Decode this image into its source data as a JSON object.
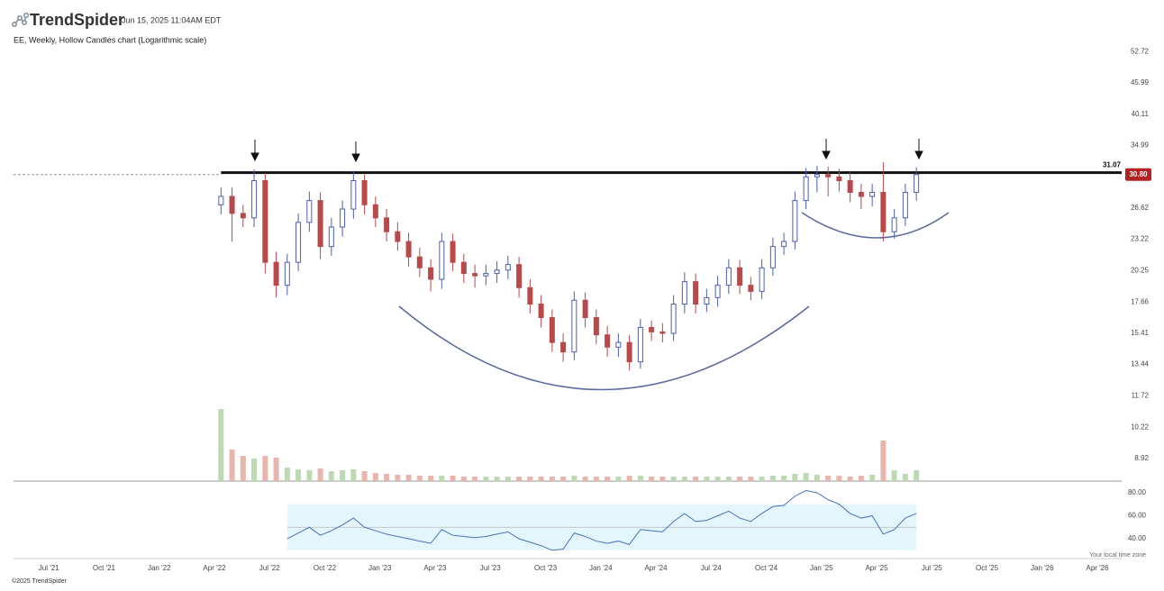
{
  "header": {
    "brand": "TrendSpider",
    "timestamp": "Jun 15, 2025 11:04AM EDT"
  },
  "footer": {
    "copyright": "©2025 TrendSpider",
    "timezone_note": "Your local time zone"
  },
  "chart_data": {
    "type": "candlestick",
    "title": "EE, Weekly, Hollow Candles chart (Logarithmic scale)",
    "log_scale": true,
    "up_color": "#4a5fb0",
    "down_color": "#b8484a",
    "x": [
      2022.28,
      2022.33,
      2022.38,
      2022.43,
      2022.48,
      2022.53,
      2022.58,
      2022.63,
      2022.68,
      2022.73,
      2022.78,
      2022.83,
      2022.88,
      2022.93,
      2022.98,
      2023.03,
      2023.08,
      2023.13,
      2023.18,
      2023.23,
      2023.28,
      2023.33,
      2023.38,
      2023.43,
      2023.48,
      2023.53,
      2023.58,
      2023.63,
      2023.68,
      2023.73,
      2023.78,
      2023.83,
      2023.88,
      2023.93,
      2023.98,
      2024.03,
      2024.08,
      2024.13,
      2024.18,
      2024.23,
      2024.28,
      2024.33,
      2024.38,
      2024.43,
      2024.48,
      2024.53,
      2024.58,
      2024.63,
      2024.68,
      2024.73,
      2024.78,
      2024.83,
      2024.88,
      2024.93,
      2024.98,
      2025.03,
      2025.08,
      2025.13,
      2025.18,
      2025.23,
      2025.28,
      2025.33,
      2025.38,
      2025.43
    ],
    "open": [
      27,
      28,
      26,
      25.5,
      30,
      21,
      19,
      21,
      25,
      27.5,
      22.5,
      24.5,
      26.5,
      30,
      27,
      25.5,
      24,
      23,
      21.5,
      20.5,
      19.5,
      23,
      21,
      20,
      19.8,
      20,
      20.3,
      20.8,
      18.8,
      17.5,
      16.5,
      14.8,
      14.2,
      17.8,
      16.5,
      15.3,
      14.5,
      14.8,
      13.6,
      15.8,
      15.5,
      15.4,
      17.5,
      19.3,
      17.5,
      18,
      19,
      20.5,
      19,
      18.5,
      20.5,
      22.5,
      23,
      27.5,
      30.5,
      30.8,
      30.5,
      30,
      28.5,
      28,
      28.5,
      24,
      25.5,
      28.5
    ],
    "high": [
      29.1,
      29.1,
      27,
      31.5,
      31,
      22,
      21.8,
      26,
      28.6,
      28.5,
      25.5,
      27.5,
      31.3,
      30.8,
      28,
      26.5,
      25,
      23.9,
      22.4,
      21.3,
      23.9,
      23.8,
      21.8,
      20.8,
      20.8,
      21.1,
      21.6,
      21.5,
      19.5,
      18.2,
      17.1,
      15.4,
      18.5,
      18.4,
      17.1,
      15.9,
      15.4,
      15.3,
      16.4,
      16.3,
      16.1,
      18.2,
      20.1,
      20,
      18.7,
      19.8,
      21.3,
      21.2,
      19.7,
      21.3,
      23.4,
      23.9,
      28.6,
      31.7,
      32,
      31.9,
      31.6,
      31.1,
      29.6,
      29.6,
      32.5,
      26.5,
      29.6,
      31.8
    ],
    "low": [
      25.9,
      23,
      24.5,
      24.5,
      20,
      18,
      18.2,
      20.2,
      24,
      21.3,
      21.6,
      23.5,
      25.4,
      25.9,
      24.5,
      23,
      22.1,
      20.6,
      19.7,
      18.5,
      18.7,
      20.2,
      19.2,
      18.8,
      19,
      19.2,
      19.5,
      18,
      16.8,
      15.8,
      14.2,
      13.6,
      13.7,
      15.8,
      14.7,
      13.9,
      13.9,
      13.1,
      13.2,
      14.9,
      14.8,
      14.9,
      16.8,
      16.8,
      16.9,
      17.3,
      18.3,
      18.3,
      17.8,
      17.9,
      19.8,
      21.7,
      22.2,
      26.5,
      28.5,
      28,
      28.6,
      27.3,
      26.5,
      26.8,
      23,
      23.3,
      24.6,
      27.5
    ],
    "close": [
      28,
      26,
      25.5,
      30,
      21,
      19,
      21,
      25,
      27.5,
      22.5,
      24.5,
      26.5,
      30,
      27,
      25.5,
      24,
      23,
      21.5,
      20.5,
      19.5,
      23,
      21,
      20,
      19.8,
      20,
      20.3,
      20.8,
      18.8,
      17.5,
      16.5,
      14.8,
      14.2,
      17.8,
      16.5,
      15.3,
      14.5,
      14.8,
      13.6,
      15.8,
      15.5,
      15.4,
      17.5,
      19.3,
      17.5,
      18,
      19,
      20.5,
      19,
      18.5,
      20.5,
      22.5,
      23,
      27.5,
      30.5,
      30.8,
      30.5,
      30,
      28.5,
      28,
      28.5,
      24,
      25.5,
      28.5,
      30.8
    ],
    "volume": [
      8,
      3.5,
      2.8,
      2.5,
      2.8,
      2.6,
      1.5,
      1.3,
      1.2,
      1.4,
      1.1,
      1.2,
      1.3,
      1.1,
      0.9,
      0.8,
      0.7,
      0.7,
      0.6,
      0.6,
      0.6,
      0.6,
      0.5,
      0.5,
      0.5,
      0.5,
      0.5,
      0.5,
      0.5,
      0.5,
      0.5,
      0.5,
      0.6,
      0.5,
      0.5,
      0.5,
      0.5,
      0.6,
      0.6,
      0.5,
      0.5,
      0.5,
      0.5,
      0.5,
      0.5,
      0.5,
      0.5,
      0.5,
      0.5,
      0.5,
      0.6,
      0.6,
      0.8,
      0.9,
      0.7,
      0.6,
      0.6,
      0.5,
      0.6,
      0.7,
      4.5,
      1.2,
      0.8,
      1.2
    ],
    "rsi": [
      null,
      null,
      null,
      null,
      null,
      null,
      40,
      45,
      50,
      43,
      47,
      52,
      58,
      50,
      47,
      44,
      42,
      40,
      38,
      36,
      48,
      43,
      42,
      41,
      42,
      44,
      46,
      40,
      37,
      34,
      30,
      31,
      45,
      42,
      38,
      36,
      38,
      35,
      48,
      47,
      46,
      55,
      62,
      55,
      56,
      60,
      64,
      58,
      55,
      62,
      68,
      69,
      77,
      82,
      80,
      74,
      70,
      62,
      58,
      60,
      44,
      48,
      58,
      62
    ],
    "rsi_band": [
      30,
      70
    ],
    "rsi_mid": 50,
    "rsi_color": "#4a6fc0",
    "xlim": [
      2021.34,
      2026.36
    ],
    "xticks": [
      {
        "value": 2021.5,
        "label": "Jul '21"
      },
      {
        "value": 2021.75,
        "label": "Oct '21"
      },
      {
        "value": 2022.0,
        "label": "Jan '22"
      },
      {
        "value": 2022.25,
        "label": "Apr '22"
      },
      {
        "value": 2022.5,
        "label": "Jul '22"
      },
      {
        "value": 2022.75,
        "label": "Oct '22"
      },
      {
        "value": 2023.0,
        "label": "Jan '23"
      },
      {
        "value": 2023.25,
        "label": "Apr '23"
      },
      {
        "value": 2023.5,
        "label": "Jul '23"
      },
      {
        "value": 2023.75,
        "label": "Oct '23"
      },
      {
        "value": 2024.0,
        "label": "Jan '24"
      },
      {
        "value": 2024.25,
        "label": "Apr '24"
      },
      {
        "value": 2024.5,
        "label": "Jul '24"
      },
      {
        "value": 2024.75,
        "label": "Oct '24"
      },
      {
        "value": 2025.0,
        "label": "Jan '25"
      },
      {
        "value": 2025.25,
        "label": "Apr '25"
      },
      {
        "value": 2025.5,
        "label": "Jul '25"
      },
      {
        "value": 2025.75,
        "label": "Oct '25"
      },
      {
        "value": 2026.0,
        "label": "Jan '26"
      },
      {
        "value": 2026.25,
        "label": "Apr '26"
      }
    ],
    "ylim": [
      8.08,
      56.4
    ],
    "yticks": [
      52.72,
      45.99,
      40.11,
      34.99,
      26.62,
      23.22,
      20.25,
      17.66,
      15.41,
      13.44,
      11.72,
      10.22,
      8.92
    ],
    "rsi_ylim": [
      26.7,
      87.8
    ],
    "rsi_yticks": [
      {
        "value": 80,
        "label": "80.00"
      },
      {
        "value": 60,
        "label": "60.00"
      },
      {
        "value": 40,
        "label": "40.00"
      }
    ],
    "level": 31.07,
    "last_price": {
      "value": 30.8,
      "label": "30.80"
    }
  }
}
